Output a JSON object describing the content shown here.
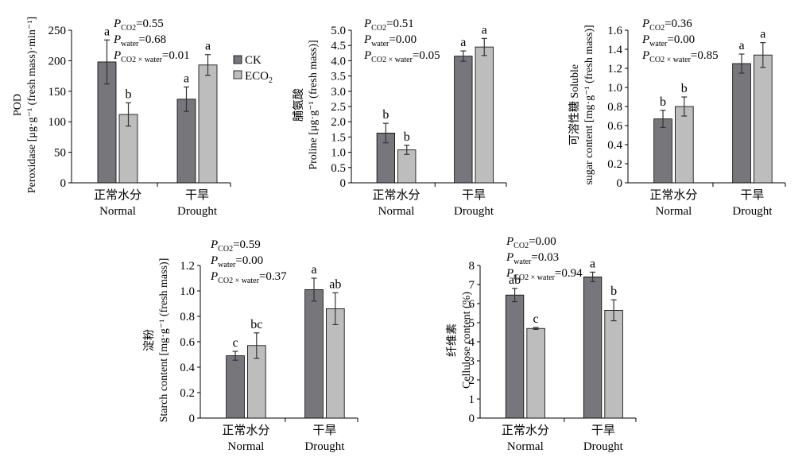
{
  "legend": {
    "items": [
      {
        "label": "CK",
        "sub": "",
        "color": "#77777b"
      },
      {
        "label": "ECO",
        "sub": "2",
        "color": "#bdbdbd"
      }
    ]
  },
  "chart_data": [
    {
      "type": "bar",
      "ylabel_lines": [
        "POD",
        "Peroxidase [μg·g⁻¹ (fresh mass)·min⁻¹]"
      ],
      "ylim": [
        0,
        250
      ],
      "yticks": [
        "0",
        "50",
        "100",
        "150",
        "200",
        "250"
      ],
      "categories": [
        "正常水分 Normal",
        "干旱 Drought"
      ],
      "category_lines": [
        [
          "正常水分",
          "Normal"
        ],
        [
          "干旱",
          "Drought"
        ]
      ],
      "series": [
        {
          "name": "CK",
          "values": [
            198,
            137
          ],
          "errors": [
            36,
            20
          ],
          "letters": [
            "a",
            "a"
          ]
        },
        {
          "name": "ECO2",
          "values": [
            112,
            193
          ],
          "errors": [
            19,
            17
          ],
          "letters": [
            "b",
            "a"
          ]
        }
      ],
      "stats": [
        {
          "sub": "CO2",
          "value": "0.55"
        },
        {
          "sub": "water",
          "value": "0.68"
        },
        {
          "sub": "CO2 × water",
          "value": "0.01"
        }
      ]
    },
    {
      "type": "bar",
      "ylabel_lines": [
        "脯氨酸",
        "Proline [μg·g⁻¹ (fresh mass)]"
      ],
      "ylim": [
        0,
        5.0
      ],
      "yticks": [
        "0",
        "0.5",
        "1.0",
        "1.5",
        "2.0",
        "2.5",
        "3.0",
        "3.5",
        "4.0",
        "4.5",
        "5.0"
      ],
      "categories": [
        "正常水分 Normal",
        "干旱 Drought"
      ],
      "category_lines": [
        [
          "正常水分",
          "Normal"
        ],
        [
          "干旱",
          "Drought"
        ]
      ],
      "series": [
        {
          "name": "CK",
          "values": [
            1.63,
            4.15
          ],
          "errors": [
            0.32,
            0.17
          ],
          "letters": [
            "b",
            "a"
          ]
        },
        {
          "name": "ECO2",
          "values": [
            1.08,
            4.45
          ],
          "errors": [
            0.15,
            0.28
          ],
          "letters": [
            "b",
            "a"
          ]
        }
      ],
      "stats": [
        {
          "sub": "CO2",
          "value": "0.51"
        },
        {
          "sub": "water",
          "value": "0.00"
        },
        {
          "sub": "CO2 × water",
          "value": "0.05"
        }
      ]
    },
    {
      "type": "bar",
      "ylabel_lines": [
        "可溶性糖 Soluble",
        "sugar content [mg·g⁻¹ (fresh mass)]"
      ],
      "ylim": [
        0,
        1.6
      ],
      "yticks": [
        "0",
        "0.2",
        "0.4",
        "0.6",
        "0.8",
        "1.0",
        "1.2",
        "1.4",
        "1.6"
      ],
      "categories": [
        "正常水分 Normal",
        "干旱 Drought"
      ],
      "category_lines": [
        [
          "正常水分",
          "Normal"
        ],
        [
          "干旱",
          "Drought"
        ]
      ],
      "series": [
        {
          "name": "CK",
          "values": [
            0.67,
            1.25
          ],
          "errors": [
            0.09,
            0.1
          ],
          "letters": [
            "b",
            "a"
          ]
        },
        {
          "name": "ECO2",
          "values": [
            0.8,
            1.34
          ],
          "errors": [
            0.1,
            0.13
          ],
          "letters": [
            "b",
            "a"
          ]
        }
      ],
      "stats": [
        {
          "sub": "CO2",
          "value": "0.36"
        },
        {
          "sub": "water",
          "value": "0.00"
        },
        {
          "sub": "CO2 × water",
          "value": "0.85"
        }
      ]
    },
    {
      "type": "bar",
      "ylabel_lines": [
        "淀粉",
        "Starch content [mg·g⁻¹ (fresh mass)]"
      ],
      "ylim": [
        0,
        1.2
      ],
      "yticks": [
        "0",
        "0.2",
        "0.4",
        "0.6",
        "0.8",
        "1.0",
        "1.2"
      ],
      "categories": [
        "正常水分 Normal",
        "干旱 Drought"
      ],
      "category_lines": [
        [
          "正常水分",
          "Normal"
        ],
        [
          "干旱",
          "Drought"
        ]
      ],
      "series": [
        {
          "name": "CK",
          "values": [
            0.49,
            1.01
          ],
          "errors": [
            0.035,
            0.09
          ],
          "letters": [
            "c",
            "a"
          ]
        },
        {
          "name": "ECO2",
          "values": [
            0.57,
            0.86
          ],
          "errors": [
            0.1,
            0.125
          ],
          "letters": [
            "bc",
            "ab"
          ]
        }
      ],
      "stats": [
        {
          "sub": "CO2",
          "value": "0.59"
        },
        {
          "sub": "water",
          "value": "0.00"
        },
        {
          "sub": "CO2 × water",
          "value": "0.37"
        }
      ]
    },
    {
      "type": "bar",
      "ylabel_lines": [
        "纤维素",
        "Cellulose content (%)"
      ],
      "ylim": [
        0,
        8
      ],
      "yticks": [
        "0",
        "1",
        "2",
        "3",
        "4",
        "5",
        "6",
        "7",
        "8"
      ],
      "categories": [
        "正常水分 Normal",
        "干旱 Drought"
      ],
      "category_lines": [
        [
          "正常水分",
          "Normal"
        ],
        [
          "干旱",
          "Drought"
        ]
      ],
      "series": [
        {
          "name": "CK",
          "values": [
            6.45,
            7.4
          ],
          "errors": [
            0.35,
            0.25
          ],
          "letters": [
            "ab",
            "a"
          ]
        },
        {
          "name": "ECO2",
          "values": [
            4.7,
            5.65
          ],
          "errors": [
            0.05,
            0.55
          ],
          "letters": [
            "c",
            "b"
          ]
        }
      ],
      "stats": [
        {
          "sub": "CO2",
          "value": "0.00"
        },
        {
          "sub": "water",
          "value": "0.03"
        },
        {
          "sub": "CO2 × water",
          "value": "0.94"
        }
      ]
    }
  ]
}
